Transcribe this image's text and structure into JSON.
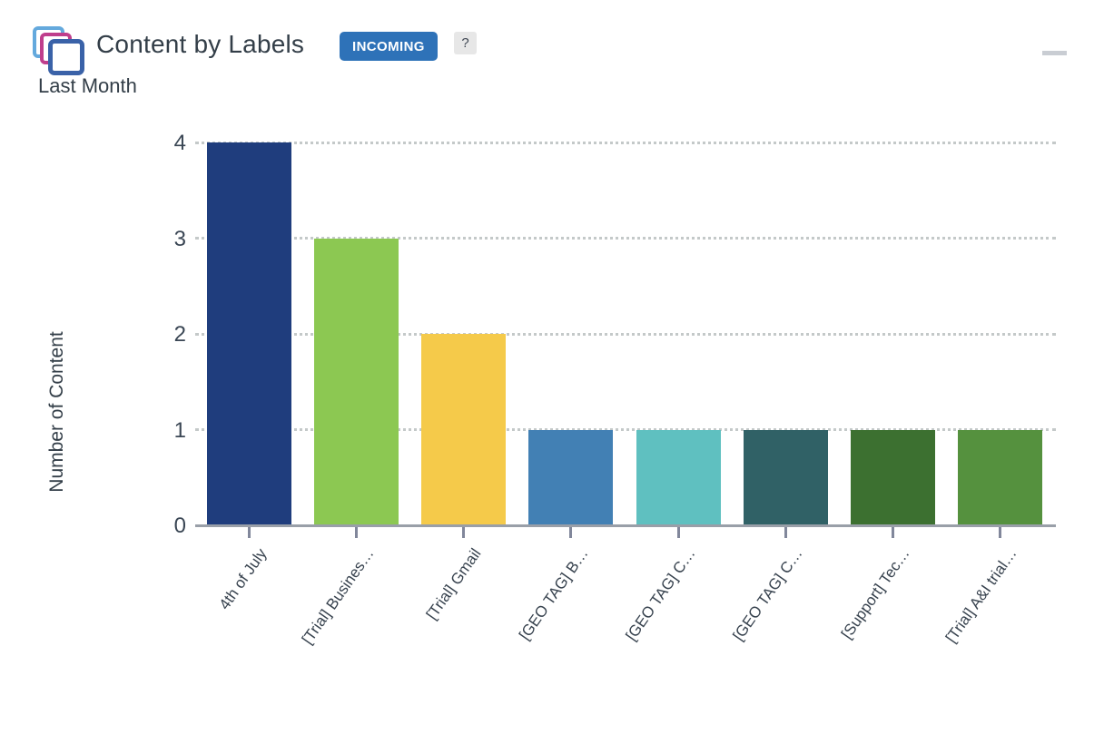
{
  "header": {
    "title": "Content by Labels",
    "badge_label": "INCOMING",
    "badge_color": "#2e72b8",
    "help_label": "?",
    "subtitle": "Last Month"
  },
  "chart_data": {
    "type": "bar",
    "title": "Content by Labels",
    "subtitle": "Last Month",
    "categories": [
      "4th of July",
      "[Trial] Busines…",
      "[Trial] Gmail",
      "[GEO TAG] B…",
      "[GEO TAG] C…",
      "[GEO TAG] C…",
      "[Support] Tec…",
      "[Trial] A&I trial…"
    ],
    "values": [
      4,
      3,
      2,
      1,
      1,
      1,
      1,
      1
    ],
    "bar_colors": [
      "#1f3d7d",
      "#8cc852",
      "#f5ca4a",
      "#4280b4",
      "#5fc0c0",
      "#306166",
      "#3c7030",
      "#55913e"
    ],
    "xlabel": "",
    "ylabel": "Number of Content",
    "ylim": [
      0,
      4
    ],
    "yticks": [
      0,
      1,
      2,
      3,
      4
    ],
    "grid": "horizontal-dotted",
    "legend": "none",
    "x_label_rotation_deg": -55
  }
}
